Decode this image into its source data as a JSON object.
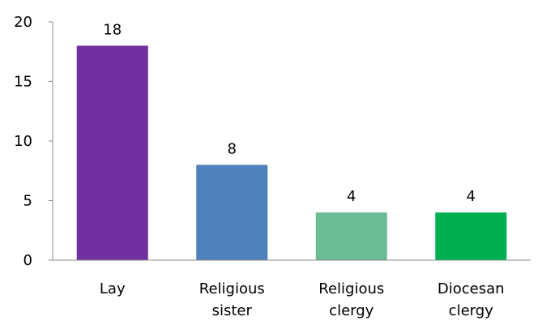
{
  "chart_data": {
    "type": "bar",
    "title": "",
    "xlabel": "",
    "ylabel": "",
    "categories": [
      [
        "Lay"
      ],
      [
        "Religious",
        "sister"
      ],
      [
        "Religious",
        "clergy"
      ],
      [
        "Diocesan",
        "clergy"
      ]
    ],
    "values": [
      18,
      8,
      4,
      4
    ],
    "data_labels": [
      "18",
      "8",
      "4",
      "4"
    ],
    "colors": [
      "#7030a0",
      "#4f81bd",
      "#6bbb94",
      "#00b050"
    ],
    "ylim": [
      0,
      20
    ],
    "yticks": [
      0,
      5,
      10,
      15,
      20
    ],
    "grid": false,
    "legend": "none"
  }
}
